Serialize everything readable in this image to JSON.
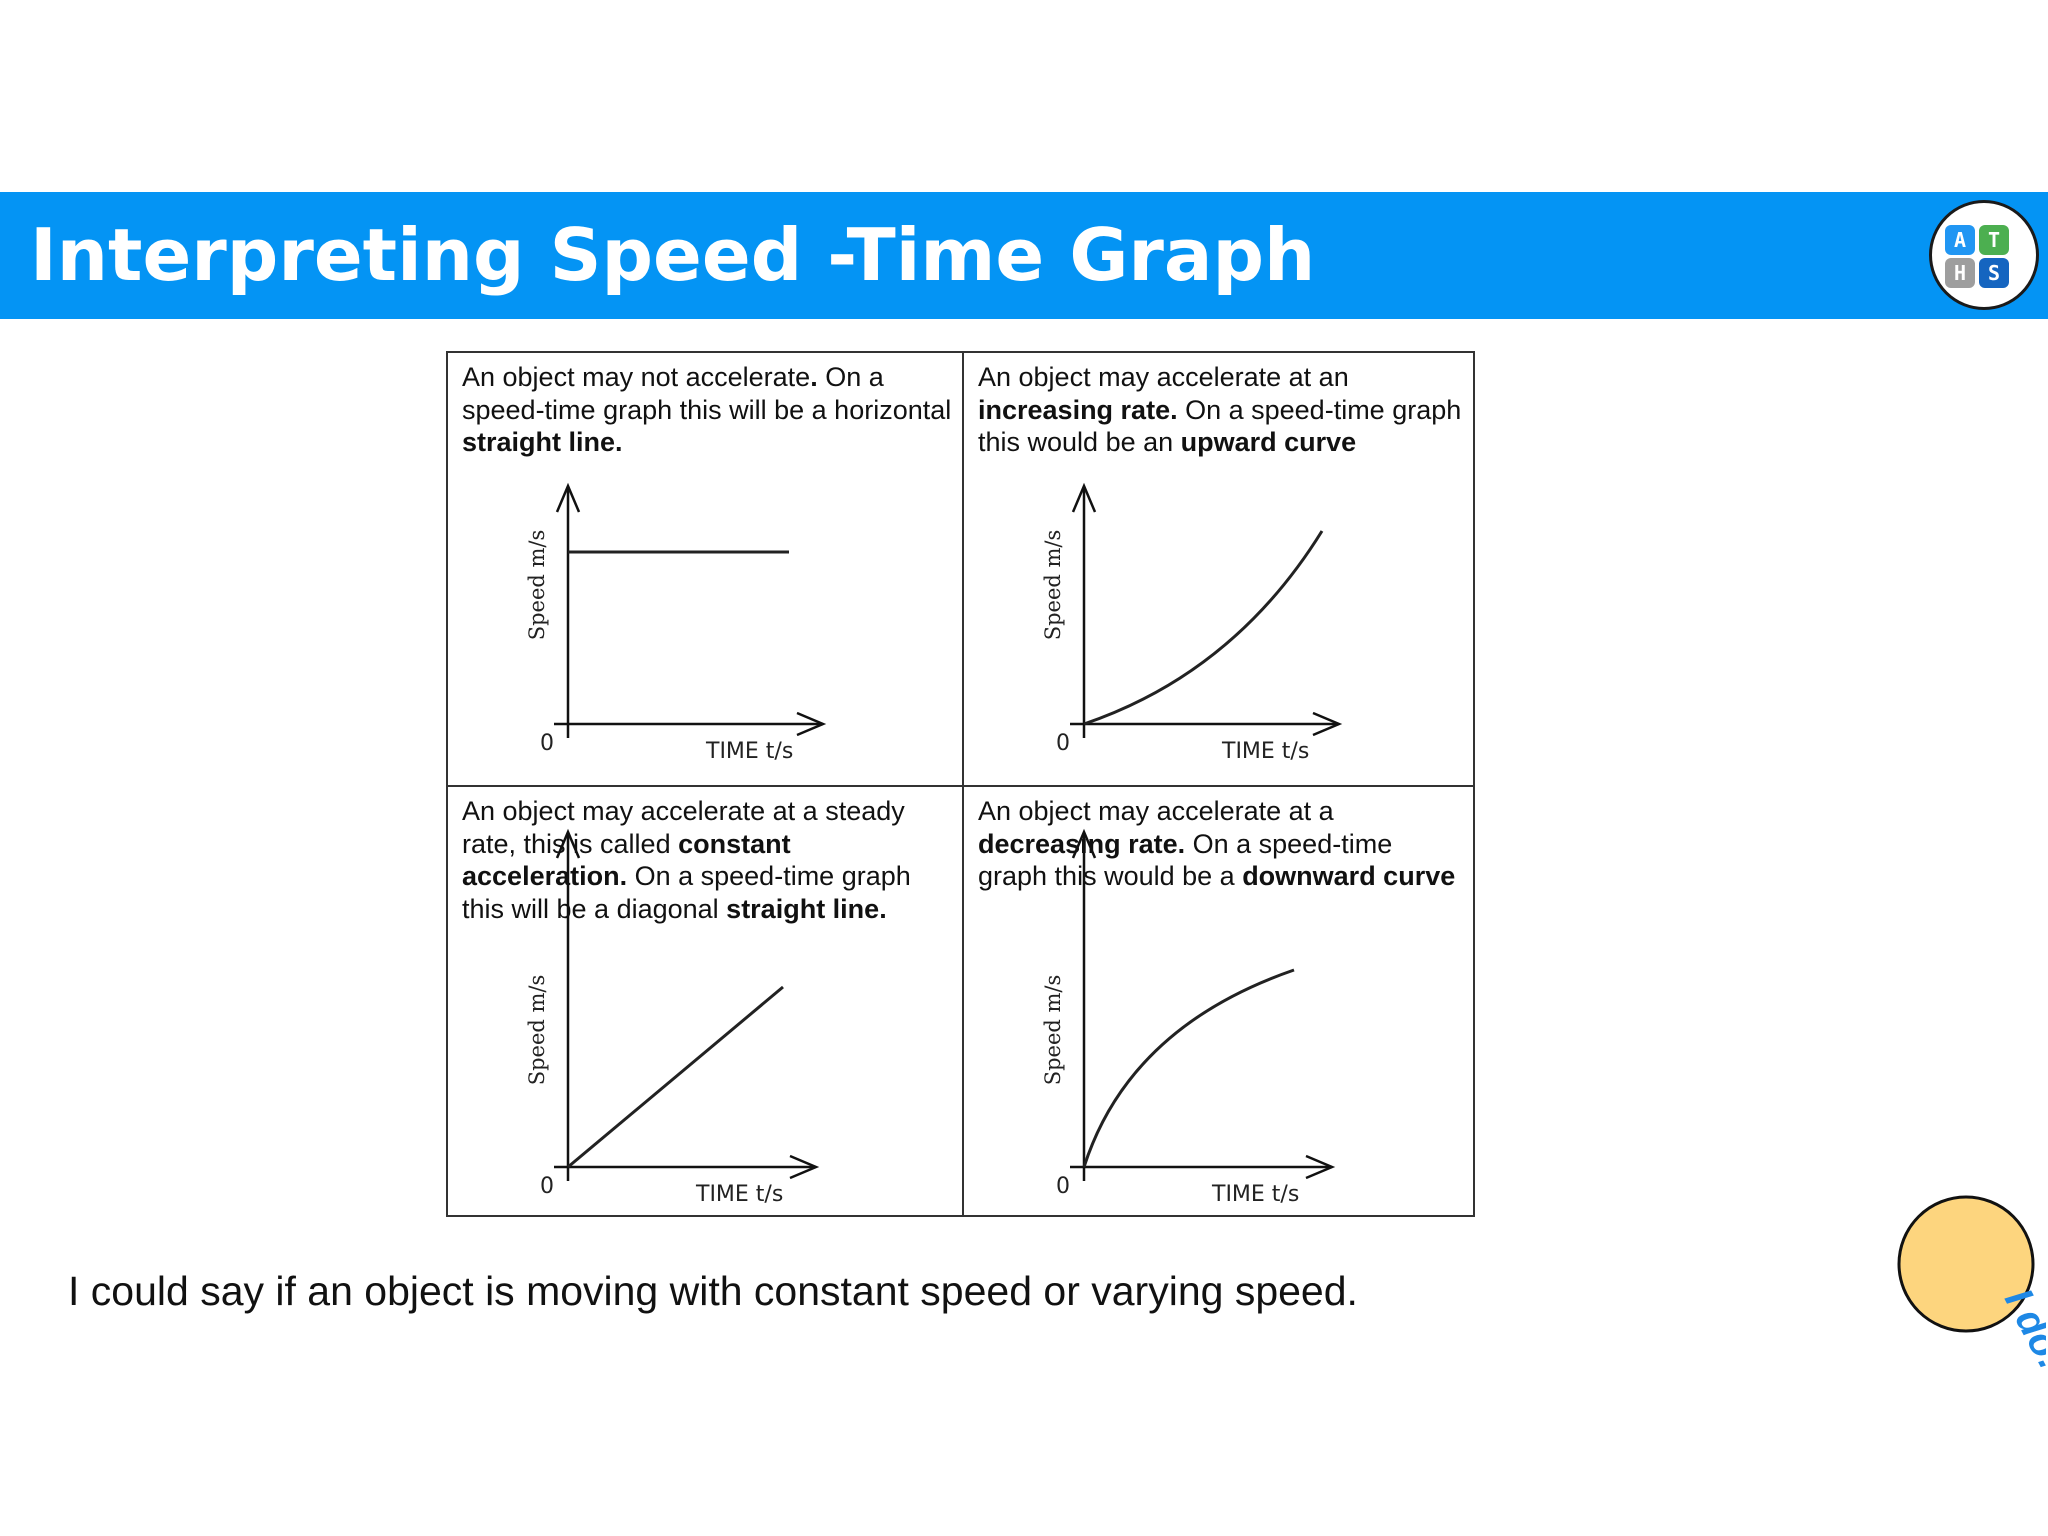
{
  "header": {
    "title": "Interpreting Speed -Time Graph",
    "logo": {
      "letters": [
        "A",
        "T",
        "H",
        "S"
      ],
      "colors": [
        "#2196f3",
        "#4caf50",
        "#9e9e9e",
        "#1565c0"
      ]
    }
  },
  "panels": [
    {
      "id": "no-acceleration",
      "text": [
        {
          "t": "An object may not accelerate",
          "b": false
        },
        {
          "t": ".",
          "b": true
        },
        {
          "t": " On a speed-time graph this will be a horizontal ",
          "b": false
        },
        {
          "t": "straight line.",
          "b": true
        }
      ],
      "graph": {
        "curve": "horizontal",
        "ylabel": "Speed m/s",
        "xlabel": "TIME t/s",
        "origin": "0"
      }
    },
    {
      "id": "increasing-rate",
      "text": [
        {
          "t": "An object may accelerate at an ",
          "b": false
        },
        {
          "t": "increasing rate.",
          "b": true
        },
        {
          "t": " On a speed-time graph this would be an ",
          "b": false
        },
        {
          "t": "upward curve",
          "b": true
        }
      ],
      "graph": {
        "curve": "upward",
        "ylabel": "Speed m/s",
        "xlabel": "TIME t/s",
        "origin": "0"
      }
    },
    {
      "id": "constant-acceleration",
      "text": [
        {
          "t": "An object may accelerate at a steady rate, this is called ",
          "b": false
        },
        {
          "t": "constant acceleration.",
          "b": true
        },
        {
          "t": " On a speed-time graph this will be a diagonal ",
          "b": false
        },
        {
          "t": "straight line.",
          "b": true
        }
      ],
      "graph": {
        "curve": "diagonal",
        "ylabel": "Speed m/s",
        "xlabel": "TIME t/s",
        "origin": "0"
      }
    },
    {
      "id": "decreasing-rate",
      "text": [
        {
          "t": "An object may accelerate at a ",
          "b": false
        },
        {
          "t": "decreasing rate.",
          "b": true
        },
        {
          "t": " On a speed-time graph this would be a ",
          "b": false
        },
        {
          "t": "downward curve",
          "b": true
        }
      ],
      "graph": {
        "curve": "downward",
        "ylabel": "Speed m/s",
        "xlabel": "TIME t/s",
        "origin": "0"
      }
    }
  ],
  "caption": "I could say if an object is moving with constant speed or varying speed.",
  "badge": {
    "text": "I do!",
    "fill": "#fdd57e",
    "text_color": "#1e88e5"
  },
  "colors": {
    "banner": "#0494f4",
    "line": "#111111"
  }
}
